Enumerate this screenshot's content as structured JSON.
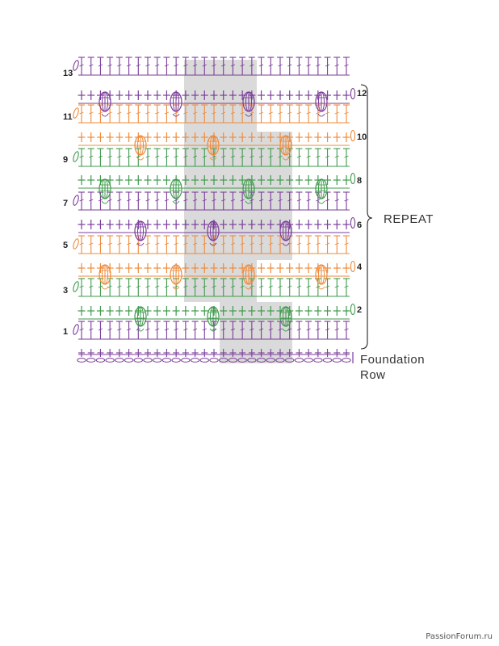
{
  "diagram": {
    "colors": {
      "purple": "#7b3d99",
      "orange": "#ef8a3a",
      "green": "#3f9a4c",
      "shade": "#d4d4d4",
      "ink": "#222222"
    },
    "rows_left": [
      {
        "label": "13",
        "color": "purple"
      },
      {
        "label": "11",
        "color": "orange"
      },
      {
        "label": "9",
        "color": "green"
      },
      {
        "label": "7",
        "color": "purple"
      },
      {
        "label": "5",
        "color": "orange"
      },
      {
        "label": "3",
        "color": "green"
      },
      {
        "label": "1",
        "color": "purple"
      }
    ],
    "rows_right": [
      {
        "label": "12",
        "color": "purple"
      },
      {
        "label": "10",
        "color": "orange"
      },
      {
        "label": "8",
        "color": "green"
      },
      {
        "label": "6",
        "color": "purple"
      },
      {
        "label": "4",
        "color": "orange"
      },
      {
        "label": "2",
        "color": "green"
      }
    ],
    "repeat_label": "REPEAT",
    "foundation_line1": "Foundation",
    "foundation_line2": "Row"
  },
  "watermark": "PassionForum.ru"
}
